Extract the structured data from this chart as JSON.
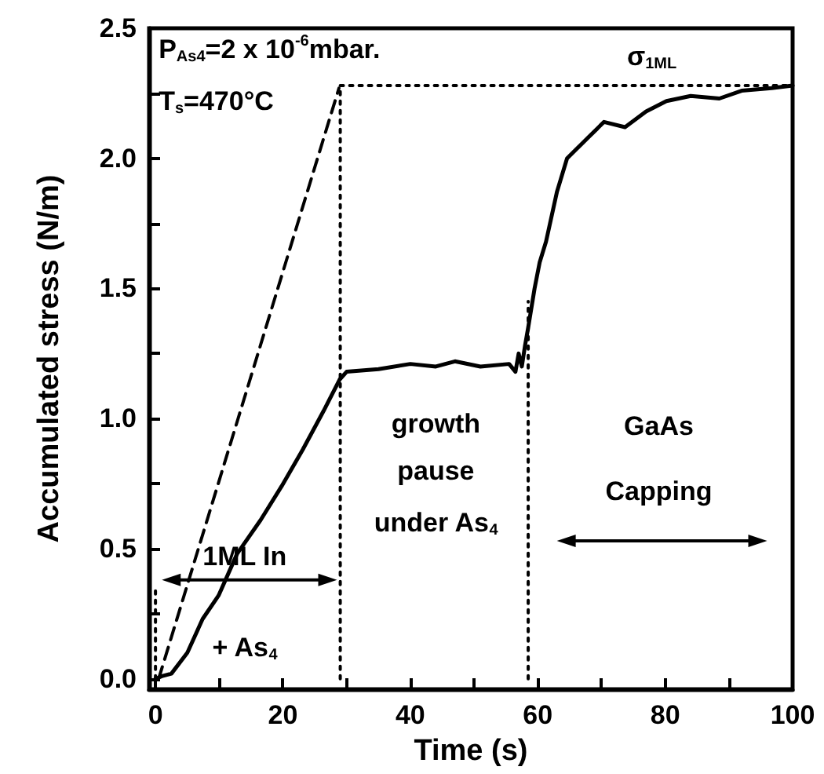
{
  "chart_data": {
    "type": "line",
    "xlabel": "Time (s)",
    "ylabel": "Accumulated stress (N/m)",
    "xlim": [
      -1,
      100
    ],
    "ylim": [
      -0.04,
      2.5
    ],
    "xticks": [
      0,
      {
        "value": 10,
        "label": null
      },
      20,
      {
        "value": 30,
        "label": null
      },
      40,
      {
        "value": 50,
        "label": null
      },
      60,
      {
        "value": 70,
        "label": null
      },
      80,
      {
        "value": 90,
        "label": null
      },
      100
    ],
    "yticks": [
      {
        "value": 0,
        "label": "0.0"
      },
      {
        "value": 0.25,
        "label": null
      },
      {
        "value": 0.5,
        "label": "0.5"
      },
      {
        "value": 0.75,
        "label": null
      },
      {
        "value": 1,
        "label": "1.0"
      },
      {
        "value": 1.25,
        "label": null
      },
      {
        "value": 1.5,
        "label": "1.5"
      },
      {
        "value": 1.75,
        "label": null
      },
      {
        "value": 2,
        "label": "2.0"
      },
      {
        "value": 2.25,
        "label": null
      },
      {
        "value": 2.5,
        "label": "2.5"
      }
    ],
    "grid": false,
    "marker": "none",
    "series": [
      {
        "color": "#000000",
        "line_style": "solid",
        "x": [
          0,
          1,
          2.5,
          5,
          7.4,
          9.9,
          12.8,
          16.5,
          19.8,
          23.1,
          26.4,
          28.9,
          30,
          35,
          40,
          44,
          47,
          51,
          55.5,
          56.5,
          57,
          57.5,
          58,
          58.5,
          59.5,
          60.3,
          61.3,
          63,
          64.6,
          67.9,
          70.4,
          73.7,
          77,
          80.2,
          84,
          88.5,
          92,
          96.7,
          100
        ],
        "values": [
          0,
          0.01,
          0.02,
          0.1,
          0.23,
          0.32,
          0.48,
          0.61,
          0.74,
          0.88,
          1.03,
          1.15,
          1.18,
          1.19,
          1.21,
          1.2,
          1.22,
          1.2,
          1.21,
          1.18,
          1.25,
          1.2,
          1.28,
          1.35,
          1.5,
          1.6,
          1.68,
          1.87,
          2,
          2.08,
          2.14,
          2.12,
          2.18,
          2.22,
          2.24,
          2.23,
          2.26,
          2.27,
          2.28
        ]
      },
      {
        "color": "#000000",
        "line_style": "dashed",
        "x": [
          0.5,
          28.8
        ],
        "values": [
          0,
          2.27
        ]
      },
      {
        "color": "#000000",
        "line_style": "dotted",
        "x": [
          29,
          100
        ],
        "values": [
          2.28,
          2.28
        ]
      },
      {
        "color": "#000000",
        "line_style": "dotted",
        "x": [
          29,
          29
        ],
        "values": [
          0,
          2.28
        ]
      },
      {
        "color": "#000000",
        "line_style": "dotted",
        "x": [
          58.5,
          58.5
        ],
        "values": [
          0,
          1.45
        ]
      },
      {
        "color": "#000000",
        "line_style": "dotted",
        "x": [
          0,
          0
        ],
        "values": [
          0,
          0.35
        ]
      }
    ],
    "annotations": [
      "P$_{As4}$=2 x 10$^{-6}$mbar.",
      "T$_{s}$=470°C",
      "σ$_{1ML}$",
      "1ML In",
      "+ As$_{4}$",
      "growth",
      "pause",
      "under As$_{4}$",
      "GaAs",
      "Capping"
    ]
  }
}
